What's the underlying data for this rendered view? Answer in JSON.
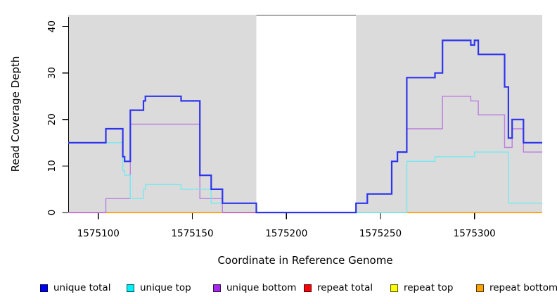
{
  "figure": {
    "background": "#ffffff"
  },
  "chart_data": {
    "type": "line",
    "subtype": "step-coverage",
    "title": "",
    "xlabel": "Coordinate in Reference Genome",
    "ylabel": "Read Coverage Depth",
    "xlim": [
      1575084,
      1575336
    ],
    "ylim": [
      0,
      42.5
    ],
    "x_ticks": [
      1575100,
      1575150,
      1575200,
      1575250,
      1575300
    ],
    "x_tick_labels": [
      "1575100",
      "1575150",
      "1575200",
      "1575250",
      "1575300"
    ],
    "y_ticks": [
      0,
      10,
      20,
      30,
      40
    ],
    "y_tick_labels": [
      "0",
      "10",
      "20",
      "30",
      "40"
    ],
    "grid": false,
    "legend_position": "bottom",
    "plot_background": "#ffffff",
    "shaded_regions": [
      {
        "x0": 1575084,
        "x1": 1575184,
        "color": "#DBDBDB"
      },
      {
        "x0": 1575237,
        "x1": 1575336,
        "color": "#DBDBDB"
      }
    ],
    "gap_top_line": {
      "x0": 1575184,
      "x1": 1575237,
      "color": "#4D4D4D"
    },
    "series": [
      {
        "name": "unique total",
        "color": "#2E34EE",
        "width": 2.2,
        "points": [
          [
            1575084,
            15
          ],
          [
            1575104,
            18
          ],
          [
            1575113,
            12
          ],
          [
            1575114,
            11
          ],
          [
            1575117,
            22
          ],
          [
            1575124,
            24
          ],
          [
            1575125,
            25
          ],
          [
            1575144,
            24
          ],
          [
            1575154,
            8
          ],
          [
            1575160,
            5
          ],
          [
            1575166,
            2
          ],
          [
            1575184,
            0
          ],
          [
            1575237,
            2
          ],
          [
            1575243,
            4
          ],
          [
            1575256,
            11
          ],
          [
            1575259,
            13
          ],
          [
            1575264,
            29
          ],
          [
            1575279,
            30
          ],
          [
            1575283,
            37
          ],
          [
            1575298,
            36
          ],
          [
            1575300,
            37
          ],
          [
            1575302,
            34
          ],
          [
            1575316,
            27
          ],
          [
            1575318,
            16
          ],
          [
            1575320,
            20
          ],
          [
            1575326,
            15
          ]
        ]
      },
      {
        "name": "unique top",
        "color": "#76E9F0",
        "width": 1.4,
        "points": [
          [
            1575084,
            15
          ],
          [
            1575113,
            9
          ],
          [
            1575114,
            8
          ],
          [
            1575117,
            3
          ],
          [
            1575124,
            5
          ],
          [
            1575125,
            6
          ],
          [
            1575144,
            5
          ],
          [
            1575160,
            2
          ],
          [
            1575184,
            0
          ],
          [
            1575264,
            11
          ],
          [
            1575279,
            12
          ],
          [
            1575300,
            13
          ],
          [
            1575318,
            2
          ]
        ]
      },
      {
        "name": "unique bottom",
        "color": "#BD7DDE",
        "width": 1.4,
        "points": [
          [
            1575084,
            0
          ],
          [
            1575104,
            3
          ],
          [
            1575117,
            19
          ],
          [
            1575154,
            3
          ],
          [
            1575166,
            0
          ],
          [
            1575237,
            2
          ],
          [
            1575243,
            4
          ],
          [
            1575256,
            11
          ],
          [
            1575259,
            13
          ],
          [
            1575264,
            18
          ],
          [
            1575283,
            25
          ],
          [
            1575298,
            24
          ],
          [
            1575302,
            21
          ],
          [
            1575316,
            14
          ],
          [
            1575320,
            18
          ],
          [
            1575326,
            13
          ]
        ]
      },
      {
        "name": "repeat total",
        "color": "#EF4146",
        "width": 1.4,
        "points": [
          [
            1575084,
            0
          ]
        ]
      },
      {
        "name": "repeat top",
        "color": "#FCFE00",
        "width": 1.4,
        "points": [
          [
            1575084,
            0
          ]
        ]
      },
      {
        "name": "repeat bottom",
        "color": "#FFA320",
        "width": 1.4,
        "points": [
          [
            1575084,
            0
          ]
        ]
      }
    ],
    "zero_line_segments": [
      {
        "x0": 1575084,
        "x1": 1575104,
        "color": "#DC6EAE"
      },
      {
        "x0": 1575104,
        "x1": 1575166,
        "color": "#FFA320"
      },
      {
        "x0": 1575166,
        "x1": 1575237,
        "color": "#EF4146"
      },
      {
        "x0": 1575237,
        "x1": 1575264,
        "color": "#A9D9AE"
      },
      {
        "x0": 1575264,
        "x1": 1575336,
        "color": "#FFA320"
      }
    ]
  },
  "legend": {
    "items": [
      {
        "label": "unique total",
        "color": "#0000F5"
      },
      {
        "label": "unique top",
        "color": "#00F0FA"
      },
      {
        "label": "unique bottom",
        "color": "#A429EC"
      },
      {
        "label": "repeat total",
        "color": "#FB0007"
      },
      {
        "label": "repeat top",
        "color": "#FCFE00"
      },
      {
        "label": "repeat bottom",
        "color": "#FCA204"
      }
    ]
  }
}
